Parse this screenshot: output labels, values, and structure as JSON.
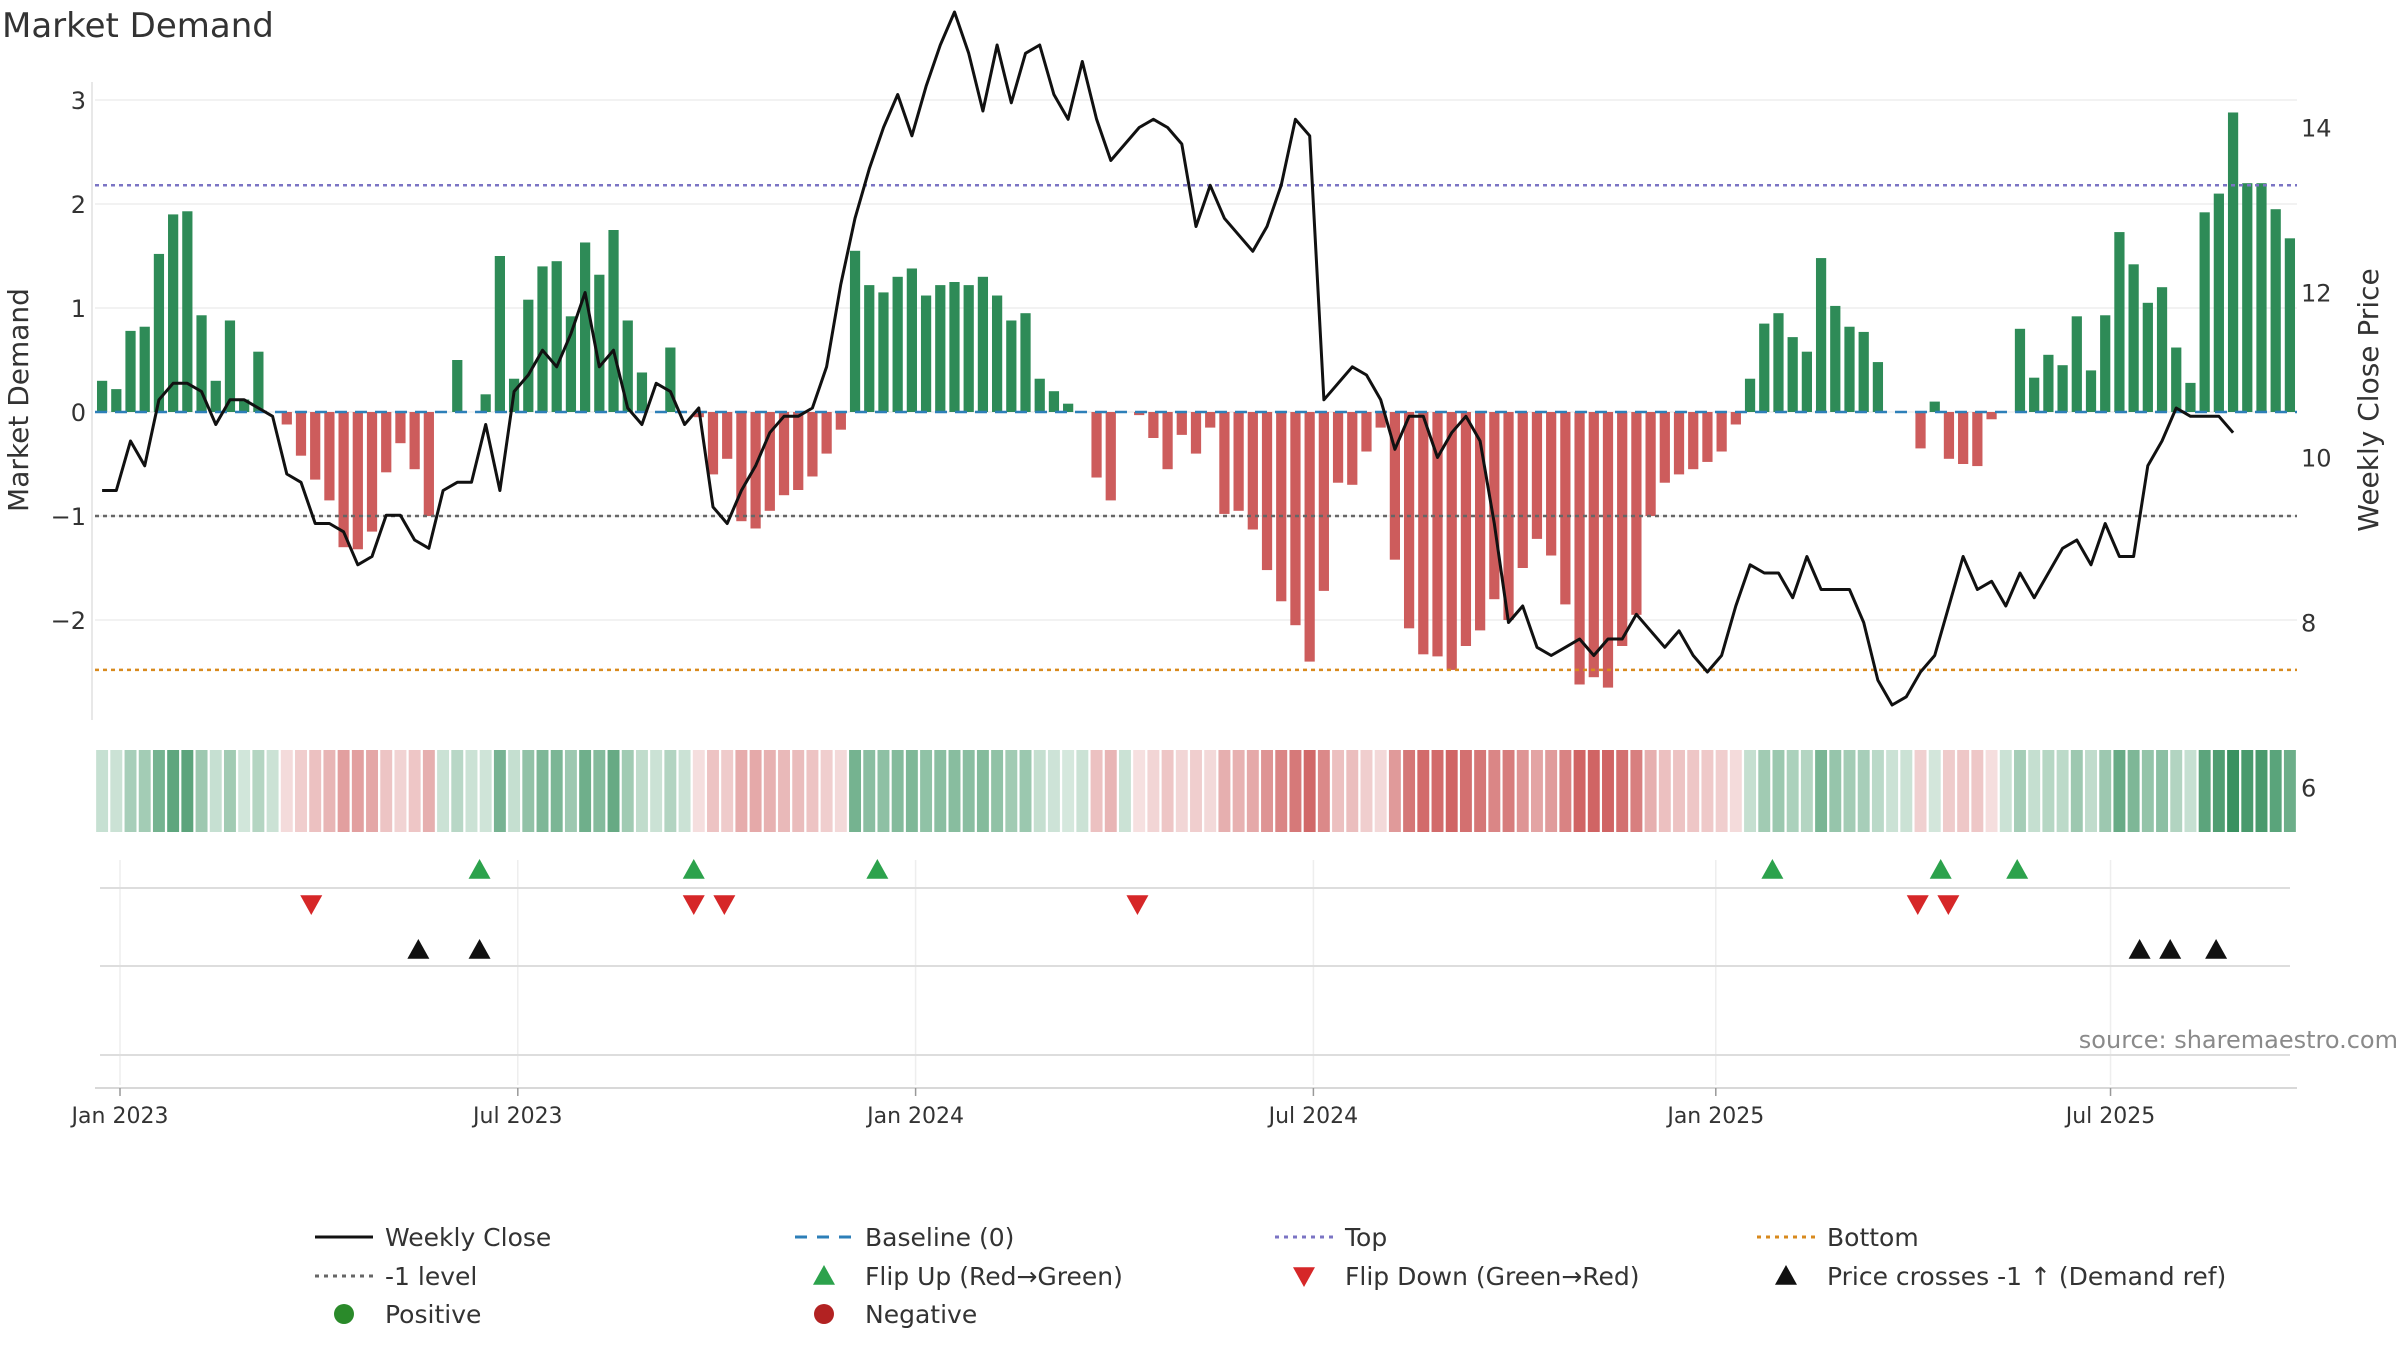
{
  "chart_data": {
    "type": "bar+line",
    "title": "Market Demand",
    "ylabel": "Market Demand",
    "y2label": "Weekly Close Price",
    "source": "source: sharemaestro.com",
    "ylim": [
      -3,
      3.2
    ],
    "y2lim": [
      5.5,
      15.7
    ],
    "yticks": [
      3,
      2,
      1,
      0,
      -1,
      -2
    ],
    "ytick_labels": [
      "3",
      "2",
      "1",
      "0",
      "−1",
      "−2"
    ],
    "y2ticks": [
      14,
      12,
      10,
      8,
      6
    ],
    "y2tick_labels": [
      "14",
      "12",
      "10",
      "8",
      "6"
    ],
    "x_start": "2023-01-02",
    "xticks": [
      {
        "label": "Jan 2023",
        "week": 0
      },
      {
        "label": "Jul 2023",
        "week": 26
      },
      {
        "label": "Jan 2024",
        "week": 52
      },
      {
        "label": "Jul 2024",
        "week": 78
      },
      {
        "label": "Jan 2025",
        "week": 104.3
      },
      {
        "label": "Jul 2025",
        "week": 130.1
      }
    ],
    "reference_lines": {
      "baseline": 0,
      "top": 2.18,
      "level_minus1": -1,
      "bottom": -2.48
    },
    "demand": [
      0.3,
      0.22,
      0.78,
      0.82,
      1.52,
      1.9,
      1.93,
      0.93,
      0.3,
      0.88,
      0.12,
      0.58,
      0,
      -0.12,
      -0.42,
      -0.65,
      -0.85,
      -1.3,
      -1.32,
      -1.15,
      -0.58,
      -0.3,
      -0.55,
      -1.0,
      0,
      0.5,
      0,
      0.17,
      1.5,
      0.32,
      1.08,
      1.4,
      1.45,
      0.92,
      1.63,
      1.32,
      1.75,
      0.88,
      0.38,
      0,
      0.62,
      0,
      -0.05,
      -0.6,
      -0.45,
      -1.05,
      -1.12,
      -0.95,
      -0.8,
      -0.75,
      -0.62,
      -0.4,
      -0.17,
      1.55,
      1.22,
      1.15,
      1.3,
      1.38,
      1.12,
      1.22,
      1.25,
      1.22,
      1.3,
      1.12,
      0.88,
      0.95,
      0.32,
      0.2,
      0.08,
      0,
      -0.63,
      -0.85,
      0,
      -0.03,
      -0.25,
      -0.55,
      -0.22,
      -0.4,
      -0.15,
      -0.98,
      -0.95,
      -1.13,
      -1.52,
      -1.82,
      -2.05,
      -2.4,
      -1.72,
      -0.68,
      -0.7,
      -0.38,
      -0.15,
      -1.42,
      -2.08,
      -2.33,
      -2.35,
      -2.48,
      -2.25,
      -2.1,
      -1.8,
      -2.0,
      -1.5,
      -1.22,
      -1.38,
      -1.85,
      -2.62,
      -2.55,
      -2.65,
      -2.25,
      -1.95,
      -1.0,
      -0.68,
      -0.6,
      -0.55,
      -0.48,
      -0.38,
      -0.12,
      0.32,
      0.85,
      0.95,
      0.72,
      0.58,
      1.48,
      1.02,
      0.82,
      0.77,
      0.48,
      0,
      0,
      -0.35,
      0.1,
      -0.45,
      -0.5,
      -0.52,
      -0.07,
      0,
      0.8,
      0.33,
      0.55,
      0.45,
      0.92,
      0.4,
      0.93,
      1.73,
      1.42,
      1.05,
      1.2,
      0.62,
      0.28,
      1.92,
      2.1,
      2.88,
      2.2,
      2.2,
      1.95,
      1.67
    ],
    "weekly_close": [
      9.6,
      9.6,
      10.2,
      9.9,
      10.7,
      10.9,
      10.9,
      10.8,
      10.4,
      10.7,
      10.7,
      10.6,
      10.5,
      9.8,
      9.7,
      9.2,
      9.2,
      9.1,
      8.7,
      8.8,
      9.3,
      9.3,
      9.0,
      8.9,
      9.6,
      9.7,
      9.7,
      10.4,
      9.6,
      10.8,
      11.0,
      11.3,
      11.1,
      11.5,
      12.0,
      11.1,
      11.3,
      10.6,
      10.4,
      10.9,
      10.8,
      10.4,
      10.6,
      9.4,
      9.2,
      9.6,
      9.9,
      10.3,
      10.5,
      10.5,
      10.6,
      11.1,
      12.1,
      12.9,
      13.5,
      14.0,
      14.4,
      13.9,
      14.5,
      15.0,
      15.4,
      14.9,
      14.2,
      15.0,
      14.3,
      14.9,
      15.0,
      14.4,
      14.1,
      14.8,
      14.1,
      13.6,
      13.8,
      14.0,
      14.1,
      14.0,
      13.8,
      12.8,
      13.3,
      12.9,
      12.7,
      12.5,
      12.8,
      13.3,
      14.1,
      13.9,
      10.7,
      10.9,
      11.1,
      11.0,
      10.7,
      10.1,
      10.5,
      10.5,
      10.0,
      10.3,
      10.5,
      10.2,
      9.2,
      8.0,
      8.2,
      7.7,
      7.6,
      7.7,
      7.8,
      7.6,
      7.8,
      7.8,
      8.1,
      7.9,
      7.7,
      7.9,
      7.6,
      7.4,
      7.6,
      8.2,
      8.7,
      8.6,
      8.6,
      8.3,
      8.8,
      8.4,
      8.4,
      8.4,
      8.0,
      7.3,
      7.0,
      7.1,
      7.4,
      7.6,
      8.2,
      8.8,
      8.4,
      8.5,
      8.2,
      8.6,
      8.3,
      8.6,
      8.9,
      9.0,
      8.7,
      9.2,
      8.8,
      8.8,
      9.9,
      10.2,
      10.6,
      10.5,
      10.5,
      10.5,
      10.3
    ],
    "flip_up_weeks": [
      23.5,
      37.5,
      49.5,
      108,
      119,
      124
    ],
    "flip_down_weeks": [
      12.5,
      37.5,
      39.5,
      66.5,
      117.5,
      119.5
    ],
    "price_cross_weeks": [
      19.5,
      23.5,
      132,
      134,
      137
    ],
    "legend": [
      {
        "label": "Weekly Close",
        "marker": "line-solid",
        "color": "#111111"
      },
      {
        "label": "Baseline (0)",
        "marker": "line-dash",
        "color": "#2d7fb8"
      },
      {
        "label": "Top",
        "marker": "line-dot",
        "color": "#7b74c4"
      },
      {
        "label": "Bottom",
        "marker": "line-dot",
        "color": "#d88a1e"
      },
      {
        "label": "-1 level",
        "marker": "line-dot",
        "color": "#666666"
      },
      {
        "label": "Flip Up (Red→Green)",
        "marker": "triangle-up",
        "color": "#2ca24c"
      },
      {
        "label": "Flip Down (Green→Red)",
        "marker": "triangle-down",
        "color": "#d62728"
      },
      {
        "label": "Price crosses -1 ↑ (Demand ref)",
        "marker": "triangle-up",
        "color": "#111111"
      },
      {
        "label": "Positive",
        "marker": "circle",
        "color": "#2a8a2a"
      },
      {
        "label": "Negative",
        "marker": "circle",
        "color": "#b22222"
      }
    ],
    "colors": {
      "positive_bar": "#2e8b57",
      "negative_bar": "#cd5c5c",
      "price_line": "#111111",
      "baseline": "#2d7fb8",
      "top": "#7b74c4",
      "bottom": "#d88a1e",
      "minus1": "#666666",
      "flip_up": "#2ca24c",
      "flip_down": "#d62728",
      "cross": "#111111"
    }
  }
}
